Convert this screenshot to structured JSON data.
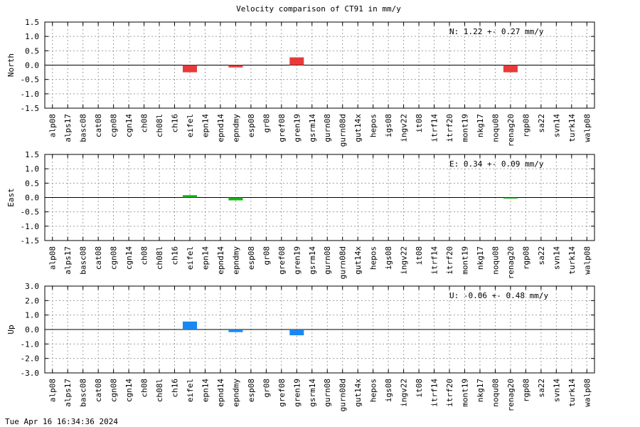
{
  "title": "Velocity comparison of CT91 in mm/y",
  "timestamp": "Tue Apr 16 16:34:36 2024",
  "chart_data": [
    {
      "type": "bar",
      "ylabel": "North",
      "ylim": [
        -1.5,
        1.5
      ],
      "yticks": [
        "1.5",
        "1.0",
        "0.5",
        "0.0",
        "-0.5",
        "-1.0",
        "-1.5"
      ],
      "grid": true,
      "annotation": "N:   1.22 +-  0.27 mm/y",
      "color": "#e83a3a",
      "categories": [
        "alp08",
        "alps17",
        "basc08",
        "cat08",
        "cgn08",
        "cgn14",
        "ch08",
        "ch08l",
        "ch16",
        "eifel",
        "epn14",
        "epnd14",
        "epndmy",
        "esp08",
        "gr08",
        "gref08",
        "gren19",
        "gsrm14",
        "gurn08",
        "gurn08d",
        "gut14x",
        "hepos",
        "igs08",
        "ingv22",
        "it08",
        "itrf14",
        "itrf20",
        "mont19",
        "nkg17",
        "noqu08",
        "renag20",
        "rgp08",
        "sa22",
        "svn14",
        "turk14",
        "walp08"
      ],
      "values": [
        0,
        0,
        0,
        0,
        0,
        0,
        0,
        0,
        0,
        -0.25,
        0,
        0,
        -0.08,
        0,
        0,
        0,
        0.27,
        0,
        0,
        0,
        0,
        0,
        0,
        0,
        0,
        0,
        0,
        0,
        0,
        0,
        -0.25,
        0,
        0,
        0,
        0,
        0
      ]
    },
    {
      "type": "bar",
      "ylabel": "East",
      "ylim": [
        -1.5,
        1.5
      ],
      "yticks": [
        "1.5",
        "1.0",
        "0.5",
        "0.0",
        "-0.5",
        "-1.0",
        "-1.5"
      ],
      "grid": true,
      "annotation": "E:   0.34 +-  0.09 mm/y",
      "color": "#18b018",
      "categories": [
        "alp08",
        "alps17",
        "basc08",
        "cat08",
        "cgn08",
        "cgn14",
        "ch08",
        "ch08l",
        "ch16",
        "eifel",
        "epn14",
        "epnd14",
        "epndmy",
        "esp08",
        "gr08",
        "gref08",
        "gren19",
        "gsrm14",
        "gurn08",
        "gurn08d",
        "gut14x",
        "hepos",
        "igs08",
        "ingv22",
        "it08",
        "itrf14",
        "itrf20",
        "mont19",
        "nkg17",
        "noqu08",
        "renag20",
        "rgp08",
        "sa22",
        "svn14",
        "turk14",
        "walp08"
      ],
      "values": [
        0,
        0,
        0,
        0,
        0,
        0,
        0,
        0,
        0,
        0.08,
        0,
        0,
        -0.1,
        0,
        0,
        0,
        0,
        0,
        0,
        0,
        0,
        0,
        0,
        0,
        0,
        0,
        0,
        0,
        0,
        0,
        -0.02,
        0,
        0,
        0,
        0,
        0
      ]
    },
    {
      "type": "bar",
      "ylabel": "Up",
      "ylim": [
        -3.0,
        3.0
      ],
      "yticks": [
        "3.0",
        "2.0",
        "1.0",
        "0.0",
        "-1.0",
        "-2.0",
        "-3.0"
      ],
      "grid": true,
      "annotation": "U:  -0.06 +-  0.48 mm/y",
      "color": "#1a88f0",
      "categories": [
        "alp08",
        "alps17",
        "basc08",
        "cat08",
        "cgn08",
        "cgn14",
        "ch08",
        "ch08l",
        "ch16",
        "eifel",
        "epn14",
        "epnd14",
        "epndmy",
        "esp08",
        "gr08",
        "gref08",
        "gren19",
        "gsrm14",
        "gurn08",
        "gurn08d",
        "gut14x",
        "hepos",
        "igs08",
        "ingv22",
        "it08",
        "itrf14",
        "itrf20",
        "mont19",
        "nkg17",
        "noqu08",
        "renag20",
        "rgp08",
        "sa22",
        "svn14",
        "turk14",
        "walp08"
      ],
      "values": [
        0,
        0,
        0,
        0,
        0,
        0,
        0,
        0,
        0,
        0.55,
        0,
        0,
        -0.18,
        0,
        0,
        0,
        -0.4,
        0,
        0,
        0,
        0,
        0,
        0,
        0,
        0,
        0,
        0,
        0,
        0,
        0,
        0,
        0,
        0,
        0,
        0,
        0
      ]
    }
  ]
}
